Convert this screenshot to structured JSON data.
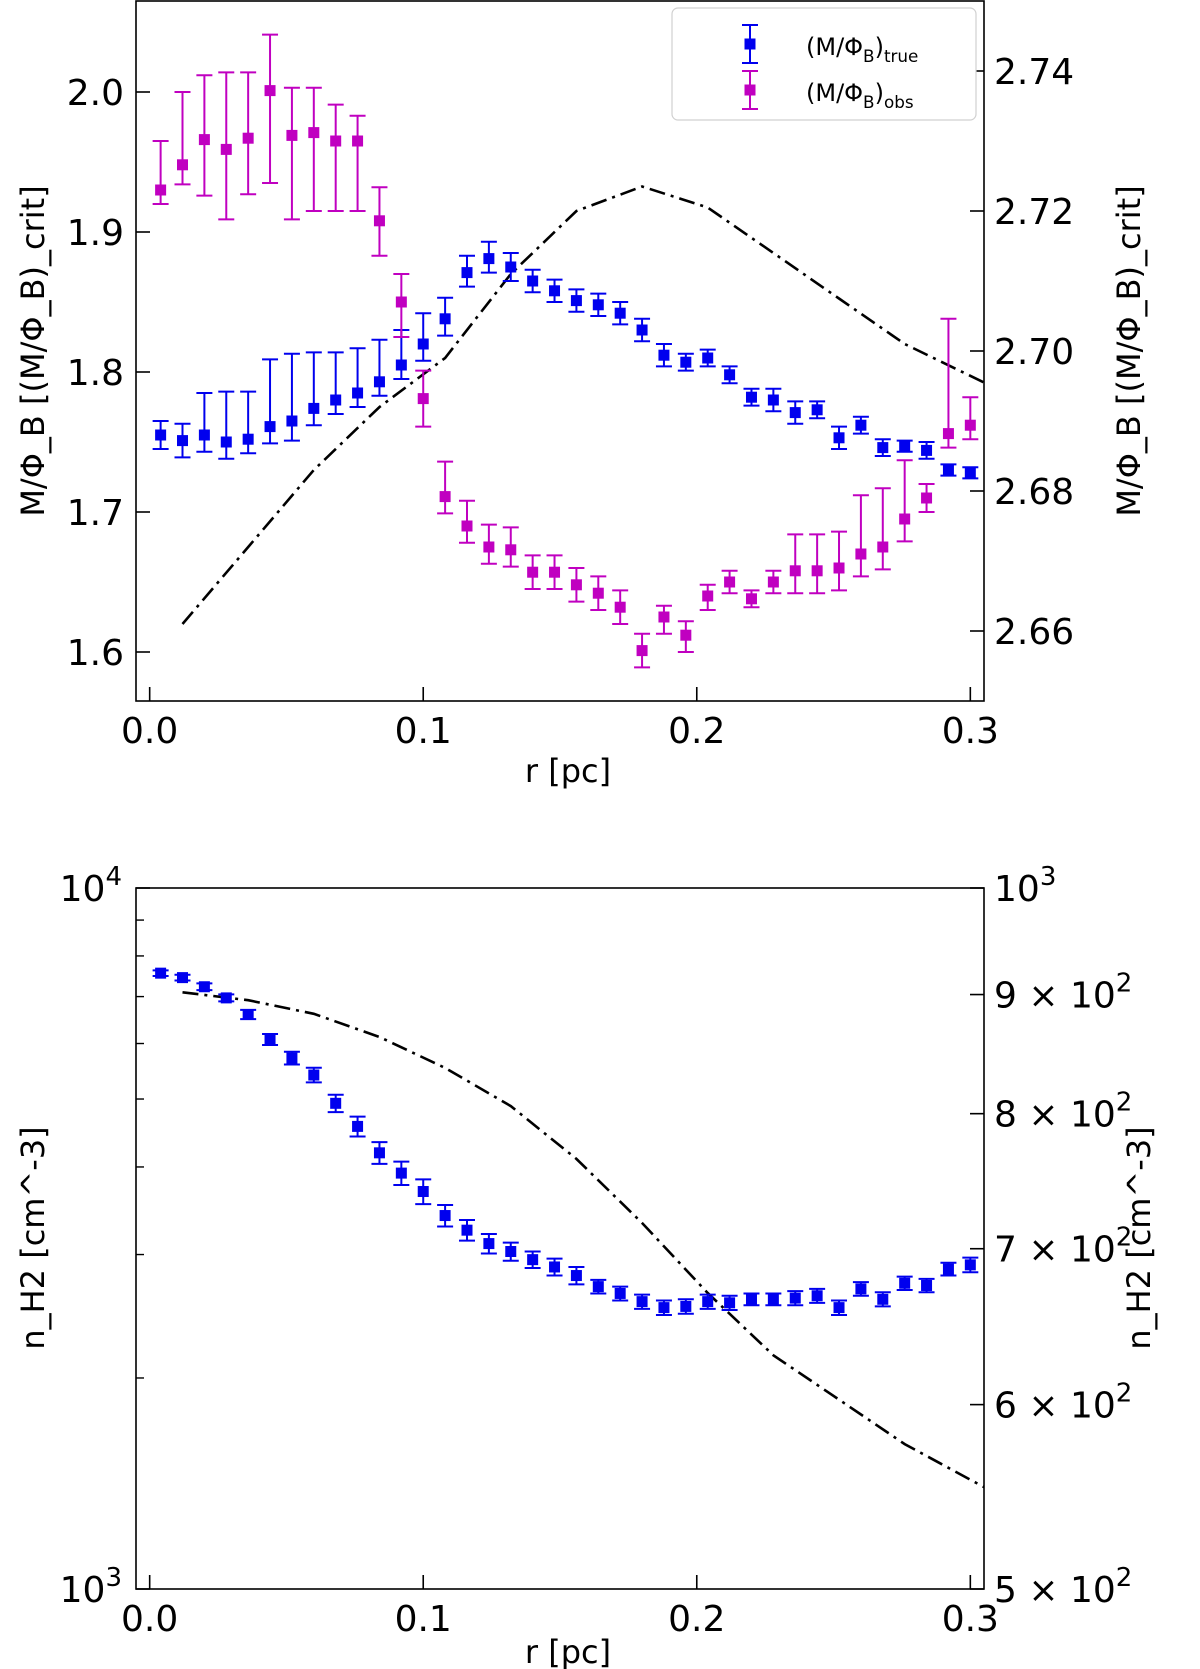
{
  "chart_data": [
    {
      "type": "scatter",
      "panel": "top",
      "xlabel": "r [pc]",
      "ylabel_left": "M/Φ_B [(M/Φ_B)_crit]",
      "ylabel_right": "M/Φ_B [(M/Φ_B)_crit]",
      "xlim": [
        -0.005,
        0.305
      ],
      "ylim_left": [
        1.565,
        2.065
      ],
      "ylim_right": [
        2.65,
        2.75
      ],
      "xticks": [
        0.0,
        0.1,
        0.2,
        0.3
      ],
      "xtick_labels": [
        "0.0",
        "0.1",
        "0.2",
        "0.3"
      ],
      "yticks_left": [
        1.6,
        1.7,
        1.8,
        1.9,
        2.0
      ],
      "ytick_labels_left": [
        "1.6",
        "1.7",
        "1.8",
        "1.9",
        "2.0"
      ],
      "yticks_right": [
        2.66,
        2.68,
        2.7,
        2.72,
        2.74
      ],
      "ytick_labels_right": [
        "2.66",
        "2.68",
        "2.70",
        "2.72",
        "2.74"
      ],
      "legend_position": "top-right",
      "legend": [
        {
          "main": "(M/Φ",
          "sub1": "B",
          "close": ")",
          "sub2": "true",
          "color": "#0000ee"
        },
        {
          "main": "(M/Φ",
          "sub1": "B",
          "close": ")",
          "sub2": "obs",
          "color": "#c000c0"
        }
      ],
      "x": [
        0.004,
        0.012,
        0.02,
        0.028,
        0.036,
        0.044,
        0.052,
        0.06,
        0.068,
        0.076,
        0.084,
        0.092,
        0.1,
        0.108,
        0.116,
        0.124,
        0.132,
        0.14,
        0.148,
        0.156,
        0.164,
        0.172,
        0.18,
        0.188,
        0.196,
        0.204,
        0.212,
        0.22,
        0.228,
        0.236,
        0.244,
        0.252,
        0.26,
        0.268,
        0.276,
        0.284,
        0.292,
        0.3
      ],
      "series": [
        {
          "key": "true",
          "color": "#0000ee",
          "values": [
            1.755,
            1.751,
            1.755,
            1.75,
            1.752,
            1.761,
            1.765,
            1.774,
            1.78,
            1.785,
            1.793,
            1.805,
            1.82,
            1.838,
            1.871,
            1.881,
            1.875,
            1.865,
            1.858,
            1.851,
            1.848,
            1.842,
            1.83,
            1.812,
            1.807,
            1.81,
            1.798,
            1.782,
            1.78,
            1.771,
            1.773,
            1.753,
            1.762,
            1.746,
            1.747,
            1.744,
            1.73,
            1.728
          ],
          "err_lo": [
            0.01,
            0.012,
            0.012,
            0.012,
            0.01,
            0.012,
            0.014,
            0.012,
            0.01,
            0.01,
            0.01,
            0.01,
            0.012,
            0.012,
            0.01,
            0.01,
            0.01,
            0.008,
            0.008,
            0.008,
            0.008,
            0.008,
            0.008,
            0.008,
            0.006,
            0.006,
            0.006,
            0.006,
            0.008,
            0.008,
            0.006,
            0.008,
            0.006,
            0.006,
            0.004,
            0.006,
            0.004,
            0.004
          ],
          "err_hi": [
            0.01,
            0.012,
            0.03,
            0.036,
            0.034,
            0.048,
            0.048,
            0.04,
            0.034,
            0.032,
            0.03,
            0.025,
            0.022,
            0.015,
            0.012,
            0.012,
            0.01,
            0.008,
            0.008,
            0.008,
            0.008,
            0.008,
            0.008,
            0.008,
            0.006,
            0.006,
            0.006,
            0.006,
            0.008,
            0.008,
            0.006,
            0.008,
            0.006,
            0.006,
            0.004,
            0.006,
            0.004,
            0.004
          ]
        },
        {
          "key": "obs",
          "color": "#c000c0",
          "values": [
            1.93,
            1.948,
            1.966,
            1.959,
            1.967,
            2.001,
            1.969,
            1.971,
            1.965,
            1.965,
            1.908,
            1.85,
            1.781,
            1.711,
            1.69,
            1.675,
            1.673,
            1.657,
            1.657,
            1.648,
            1.642,
            1.632,
            1.601,
            1.625,
            1.612,
            1.64,
            1.65,
            1.638,
            1.65,
            1.658,
            1.658,
            1.66,
            1.67,
            1.675,
            1.695,
            1.71,
            1.756,
            1.762
          ],
          "err_lo": [
            0.01,
            0.014,
            0.04,
            0.05,
            0.04,
            0.066,
            0.06,
            0.056,
            0.05,
            0.05,
            0.025,
            0.025,
            0.02,
            0.012,
            0.012,
            0.012,
            0.012,
            0.012,
            0.012,
            0.012,
            0.012,
            0.012,
            0.012,
            0.012,
            0.012,
            0.01,
            0.008,
            0.006,
            0.008,
            0.016,
            0.016,
            0.016,
            0.016,
            0.016,
            0.016,
            0.01,
            0.01,
            0.01
          ],
          "err_hi": [
            0.035,
            0.052,
            0.046,
            0.055,
            0.047,
            0.04,
            0.034,
            0.032,
            0.026,
            0.018,
            0.024,
            0.02,
            0.02,
            0.025,
            0.018,
            0.016,
            0.016,
            0.012,
            0.012,
            0.012,
            0.012,
            0.012,
            0.012,
            0.008,
            0.01,
            0.008,
            0.008,
            0.006,
            0.008,
            0.026,
            0.026,
            0.026,
            0.042,
            0.042,
            0.042,
            0.01,
            0.082,
            0.02
          ]
        }
      ],
      "dashdot_line": {
        "axis": "right",
        "color": "#000000",
        "x": [
          0.012,
          0.036,
          0.06,
          0.084,
          0.108,
          0.132,
          0.156,
          0.18,
          0.204,
          0.228,
          0.252,
          0.276,
          0.305
        ],
        "values": [
          2.661,
          2.672,
          2.683,
          2.692,
          2.699,
          2.711,
          2.72,
          2.7235,
          2.7205,
          2.714,
          2.7075,
          2.701,
          2.6955
        ]
      }
    },
    {
      "type": "scatter",
      "panel": "bottom",
      "xlabel": "r [pc]",
      "ylabel_left": "n_H2 [cm^-3]",
      "ylabel_right": "n_H2 [cm^-3]",
      "xlim": [
        -0.005,
        0.305
      ],
      "ylim_left": [
        1000,
        10000
      ],
      "ylim_right": [
        500,
        1000
      ],
      "yscale": "log",
      "xticks": [
        0.0,
        0.1,
        0.2,
        0.3
      ],
      "xtick_labels": [
        "0.0",
        "0.1",
        "0.2",
        "0.3"
      ],
      "yticks_left_major": [
        {
          "value": 10000,
          "base": "10",
          "exp": "4"
        },
        {
          "value": 1000,
          "base": "10",
          "exp": "3"
        }
      ],
      "yticks_right": [
        {
          "value": 1000,
          "mant": "",
          "base": "10",
          "exp": "3"
        },
        {
          "value": 900,
          "mant": "9 × ",
          "base": "10",
          "exp": "2"
        },
        {
          "value": 800,
          "mant": "8 × ",
          "base": "10",
          "exp": "2"
        },
        {
          "value": 700,
          "mant": "7 × ",
          "base": "10",
          "exp": "2"
        },
        {
          "value": 600,
          "mant": "6 × ",
          "base": "10",
          "exp": "2"
        },
        {
          "value": 500,
          "mant": "5 × ",
          "base": "10",
          "exp": "2"
        }
      ],
      "x": [
        0.004,
        0.012,
        0.02,
        0.028,
        0.036,
        0.044,
        0.052,
        0.06,
        0.068,
        0.076,
        0.084,
        0.092,
        0.1,
        0.108,
        0.116,
        0.124,
        0.132,
        0.14,
        0.148,
        0.156,
        0.164,
        0.172,
        0.18,
        0.188,
        0.196,
        0.204,
        0.212,
        0.22,
        0.228,
        0.236,
        0.244,
        0.252,
        0.26,
        0.268,
        0.276,
        0.284,
        0.292,
        0.3
      ],
      "series": [
        {
          "key": "density",
          "color": "#0000ee",
          "values": [
            7560,
            7450,
            7230,
            6970,
            6600,
            6080,
            5720,
            5410,
            4930,
            4570,
            4190,
            3920,
            3690,
            3410,
            3250,
            3110,
            3030,
            2950,
            2880,
            2800,
            2700,
            2640,
            2570,
            2520,
            2530,
            2570,
            2560,
            2590,
            2590,
            2600,
            2620,
            2520,
            2680,
            2590,
            2730,
            2710,
            2860,
            2900
          ],
          "err_lo": [
            70,
            70,
            80,
            80,
            100,
            110,
            120,
            130,
            140,
            150,
            150,
            150,
            150,
            120,
            110,
            100,
            90,
            80,
            80,
            80,
            60,
            60,
            60,
            60,
            60,
            60,
            60,
            50,
            50,
            60,
            60,
            60,
            60,
            60,
            60,
            60,
            60,
            70
          ],
          "err_hi": [
            70,
            70,
            80,
            80,
            100,
            110,
            120,
            130,
            140,
            150,
            150,
            150,
            150,
            120,
            110,
            100,
            90,
            80,
            80,
            80,
            60,
            60,
            60,
            60,
            60,
            60,
            60,
            50,
            50,
            60,
            60,
            60,
            60,
            60,
            60,
            60,
            60,
            70
          ]
        }
      ],
      "dashdot_line": {
        "axis": "right",
        "color": "#000000",
        "x": [
          0.012,
          0.036,
          0.06,
          0.084,
          0.108,
          0.132,
          0.156,
          0.18,
          0.204,
          0.228,
          0.252,
          0.276,
          0.305
        ],
        "values": [
          902,
          895,
          883,
          863,
          837,
          806,
          765,
          718,
          670,
          630,
          603,
          577,
          553
        ]
      }
    }
  ]
}
